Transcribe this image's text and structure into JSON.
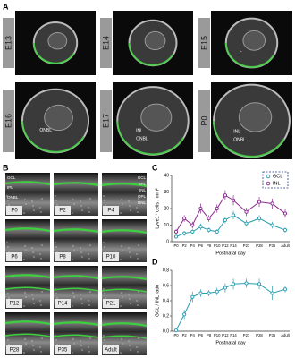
{
  "panel_labels": [
    "A",
    "B",
    "C",
    "D"
  ],
  "panel_a": {
    "images": [
      {
        "stage": "E13",
        "labels": []
      },
      {
        "stage": "E14",
        "labels": []
      },
      {
        "stage": "E15",
        "labels": [
          "L"
        ]
      },
      {
        "stage": "E16",
        "labels": [
          "ONBL"
        ]
      },
      {
        "stage": "E17",
        "labels": [
          "INL",
          "ONBL"
        ]
      },
      {
        "stage": "P0",
        "labels": [
          "INL",
          "ONBL"
        ]
      }
    ]
  },
  "panel_b": {
    "images": [
      {
        "label": "P0",
        "layers": [
          "GCL",
          "IPL",
          "ONBL"
        ]
      },
      {
        "label": "P2",
        "layers": []
      },
      {
        "label": "P4",
        "layers": [
          "GCL",
          "IPL",
          "INL",
          "OPL",
          "ONL"
        ]
      },
      {
        "label": "P6",
        "layers": []
      },
      {
        "label": "P8",
        "layers": []
      },
      {
        "label": "P10",
        "layers": []
      },
      {
        "label": "P12",
        "layers": []
      },
      {
        "label": "P14",
        "layers": []
      },
      {
        "label": "P21",
        "layers": []
      },
      {
        "label": "P28",
        "layers": []
      },
      {
        "label": "P35",
        "layers": []
      },
      {
        "label": "Adult",
        "layers": []
      }
    ]
  },
  "chart_data": [
    {
      "type": "line",
      "xlabel": "Postnatal day",
      "ylabel": "Lyve1⁺ cells / mm²",
      "categories": [
        "P0",
        "P2",
        "P4",
        "P6",
        "P8",
        "P10",
        "P12",
        "P14",
        "P21",
        "P28",
        "P35",
        "Adult"
      ],
      "series": [
        {
          "name": "GCL",
          "color": "#2a9db0",
          "values": [
            3,
            5,
            6,
            9,
            7,
            6,
            13,
            16,
            11,
            14,
            10,
            7
          ],
          "errors": [
            1,
            1.5,
            1.5,
            2,
            1.5,
            1.5,
            2,
            2.5,
            2,
            2,
            2,
            1.5
          ]
        },
        {
          "name": "INL",
          "color": "#8a2a8f",
          "values": [
            6,
            14,
            10,
            20,
            14,
            20,
            28,
            25,
            18,
            24,
            23,
            17
          ],
          "errors": [
            1.5,
            2,
            2,
            3,
            2,
            2.5,
            3,
            3,
            2.5,
            3,
            3,
            2.5
          ]
        }
      ],
      "ylim": [
        0,
        40
      ],
      "yticks": [
        0,
        10,
        20,
        30,
        40
      ],
      "legend": "top-right"
    },
    {
      "type": "line",
      "xlabel": "Postnatal day",
      "ylabel": "GCL / INL ratio",
      "categories": [
        "P0",
        "P2",
        "P4",
        "P6",
        "P8",
        "P10",
        "P12",
        "P14",
        "P21",
        "P28",
        "P35",
        "Adult"
      ],
      "values": [
        0.01,
        0.22,
        0.45,
        0.5,
        0.5,
        0.52,
        0.57,
        0.62,
        0.63,
        0.62,
        0.5,
        0.55
      ],
      "errors": [
        0.01,
        0.06,
        0.07,
        0.05,
        0.04,
        0.05,
        0.06,
        0.07,
        0.06,
        0.07,
        0.09,
        0.04
      ],
      "color": "#2a9db0",
      "ylim": [
        0,
        0.8
      ],
      "yticks": [
        {
          "value": 0,
          "label": "0.0"
        },
        0.2,
        0.4,
        0.6,
        0.8
      ]
    }
  ]
}
